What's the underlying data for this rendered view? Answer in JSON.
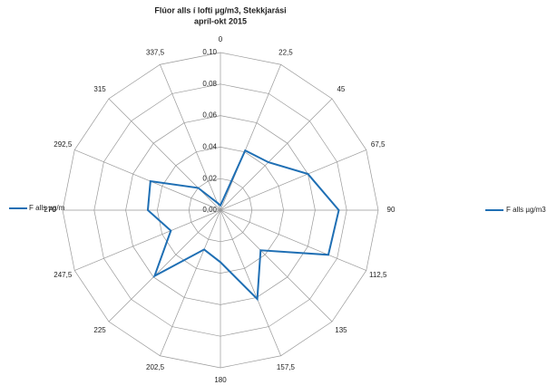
{
  "chart_data": {
    "type": "radar",
    "title": [
      "Flúor alls í lofti µg/m3, Stekkjarási",
      "apríl-okt 2015"
    ],
    "categories": [
      "0",
      "22,5",
      "45",
      "67,5",
      "90",
      "112,5",
      "135",
      "157,5",
      "180",
      "202,5",
      "225",
      "247,5",
      "270",
      "292,5",
      "315",
      "337,5"
    ],
    "series": [
      {
        "name": "F alls µg/m3",
        "color": "#1f6fb4",
        "values": [
          0.003,
          0.041,
          0.043,
          0.06,
          0.075,
          0.074,
          0.036,
          0.061,
          0.033,
          0.027,
          0.059,
          0.034,
          0.046,
          0.048,
          0.02,
          0.005
        ]
      }
    ],
    "legend_clipped": "F alls µg/m",
    "rlim": [
      0,
      0.1
    ],
    "rticks": [
      {
        "value": 0,
        "label": "0,00"
      },
      {
        "value": 0.02,
        "label": "0,02"
      },
      {
        "value": 0.04,
        "label": "0,04"
      },
      {
        "value": 0.06,
        "label": "0,06"
      },
      {
        "value": 0.08,
        "label": "0,08"
      },
      {
        "value": 0.1,
        "label": "0,10"
      }
    ],
    "legend": "right"
  }
}
